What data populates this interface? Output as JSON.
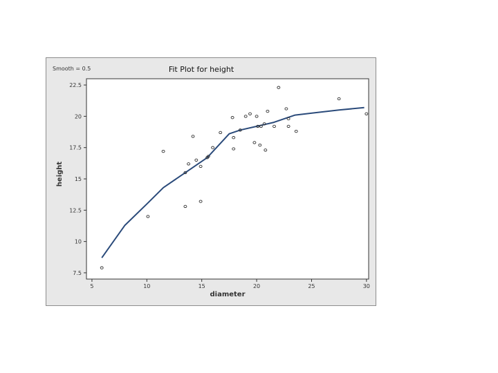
{
  "chart_data": {
    "type": "scatter",
    "title": "Fit Plot for height",
    "annotation": "Smooth = 0.5",
    "xlabel": "diameter",
    "ylabel": "height",
    "xlim": [
      4.5,
      30.2
    ],
    "ylim": [
      7.0,
      23.0
    ],
    "x_ticks": [
      5,
      10,
      15,
      20,
      25,
      30
    ],
    "y_ticks": [
      7.5,
      10,
      12.5,
      15,
      17.5,
      20,
      22.5
    ],
    "y_tick_labels": [
      "7.5",
      "10",
      "12.5",
      "15",
      "17.5",
      "20",
      "22.5"
    ],
    "grid": false,
    "colors": {
      "fit_line": "#2a4a7a",
      "points": "#333333",
      "panel_bg": "#e8e8e8",
      "plot_bg": "#ffffff"
    },
    "series": [
      {
        "type": "scatter",
        "points": [
          [
            5.9,
            7.9
          ],
          [
            10.1,
            12.0
          ],
          [
            11.5,
            17.2
          ],
          [
            13.5,
            12.8
          ],
          [
            13.5,
            15.5
          ],
          [
            13.8,
            16.2
          ],
          [
            14.2,
            18.4
          ],
          [
            14.5,
            16.5
          ],
          [
            14.9,
            13.2
          ],
          [
            14.9,
            16.0
          ],
          [
            15.5,
            16.7
          ],
          [
            15.6,
            16.8
          ],
          [
            16.0,
            17.5
          ],
          [
            16.7,
            18.7
          ],
          [
            17.8,
            19.9
          ],
          [
            17.9,
            18.3
          ],
          [
            17.9,
            17.4
          ],
          [
            18.5,
            18.9
          ],
          [
            19.0,
            20.0
          ],
          [
            19.4,
            20.2
          ],
          [
            19.8,
            17.9
          ],
          [
            20.0,
            20.0
          ],
          [
            20.1,
            19.2
          ],
          [
            20.3,
            17.7
          ],
          [
            20.4,
            19.2
          ],
          [
            20.7,
            19.4
          ],
          [
            20.8,
            17.3
          ],
          [
            21.0,
            20.4
          ],
          [
            21.6,
            19.2
          ],
          [
            22.0,
            22.3
          ],
          [
            22.7,
            20.6
          ],
          [
            22.9,
            19.8
          ],
          [
            22.9,
            19.2
          ],
          [
            23.6,
            18.8
          ],
          [
            27.5,
            21.4
          ],
          [
            30.0,
            20.2
          ]
        ]
      },
      {
        "type": "line",
        "points": [
          [
            5.9,
            8.7
          ],
          [
            8.0,
            11.3
          ],
          [
            10.0,
            13.0
          ],
          [
            11.5,
            14.3
          ],
          [
            13.5,
            15.5
          ],
          [
            15.5,
            16.7
          ],
          [
            17.5,
            18.6
          ],
          [
            18.5,
            18.9
          ],
          [
            20.0,
            19.2
          ],
          [
            21.5,
            19.5
          ],
          [
            23.5,
            20.1
          ],
          [
            25.5,
            20.3
          ],
          [
            27.5,
            20.5
          ],
          [
            29.8,
            20.7
          ]
        ]
      }
    ]
  }
}
